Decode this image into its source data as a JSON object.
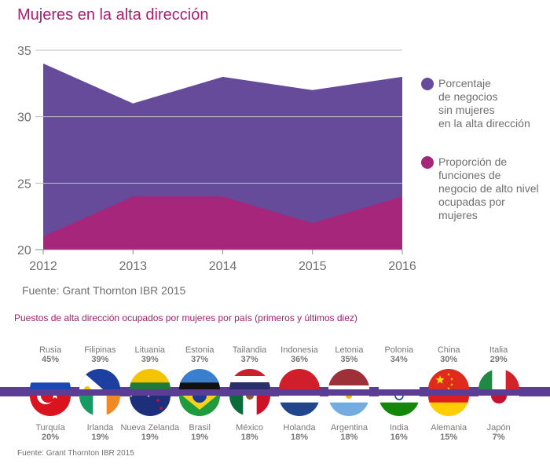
{
  "title": "Mujeres en la alta dirección",
  "chart_data": {
    "type": "area",
    "x": [
      "2012",
      "2013",
      "2014",
      "2015",
      "2016"
    ],
    "series": [
      {
        "name": "Porcentaje de negocios sin mujeres en la alta dirección",
        "values": [
          34,
          31,
          33,
          32,
          33
        ],
        "color": "#654b9a"
      },
      {
        "name": "Proporción de funciones de negocio de alto nivel ocupadas por mujeres",
        "values": [
          21,
          24,
          24,
          22,
          24
        ],
        "color": "#a6267c"
      }
    ],
    "yticks": [
      "20",
      "25",
      "30",
      "35"
    ],
    "ylim": [
      20,
      35
    ],
    "grid": true,
    "legend_placement": "right"
  },
  "legend": [
    {
      "text": "Porcentaje\nde negocios\nsin mujeres\nen la alta dirección",
      "color": "#654b9a"
    },
    {
      "text": "Proporción de\nfunciones de\nnegocio de alto nivel\nocupadas por\nmujeres",
      "color": "#a6267c"
    }
  ],
  "source_chart": "Fuente: Grant Thornton IBR 2015",
  "subtitle": "Puestos de alta dirección ocupados por mujeres por país (primeros y últimos diez)",
  "top_countries": [
    {
      "name": "Rusia",
      "pct": "45%",
      "flag": "russia-flag"
    },
    {
      "name": "Filipinas",
      "pct": "39%",
      "flag": "philippines-flag"
    },
    {
      "name": "Lituania",
      "pct": "39%",
      "flag": "lithuania-flag"
    },
    {
      "name": "Estonia",
      "pct": "37%",
      "flag": "estonia-flag"
    },
    {
      "name": "Tailandia",
      "pct": "37%",
      "flag": "thailand-flag"
    },
    {
      "name": "Indonesia",
      "pct": "36%",
      "flag": "indonesia-flag"
    },
    {
      "name": "Letonia",
      "pct": "35%",
      "flag": "latvia-flag"
    },
    {
      "name": "Polonia",
      "pct": "34%",
      "flag": "poland-flag"
    },
    {
      "name": "China",
      "pct": "30%",
      "flag": "china-flag"
    },
    {
      "name": "Italia",
      "pct": "29%",
      "flag": "italy-flag"
    }
  ],
  "bottom_countries": [
    {
      "name": "Turquía",
      "pct": "20%",
      "flag": "turkey-flag"
    },
    {
      "name": "Irlanda",
      "pct": "19%",
      "flag": "ireland-flag"
    },
    {
      "name": "Nueva Zelanda",
      "pct": "19%",
      "flag": "new-zealand-flag"
    },
    {
      "name": "Brasil",
      "pct": "19%",
      "flag": "brazil-flag"
    },
    {
      "name": "México",
      "pct": "18%",
      "flag": "mexico-flag"
    },
    {
      "name": "Holanda",
      "pct": "18%",
      "flag": "netherlands-flag"
    },
    {
      "name": "Argentina",
      "pct": "18%",
      "flag": "argentina-flag"
    },
    {
      "name": "India",
      "pct": "16%",
      "flag": "india-flag"
    },
    {
      "name": "Alemania",
      "pct": "15%",
      "flag": "germany-flag"
    },
    {
      "name": "Japón",
      "pct": "7%",
      "flag": "japan-flag"
    }
  ],
  "source_countries": "Fuente: Grant Thornton IBR 2015"
}
